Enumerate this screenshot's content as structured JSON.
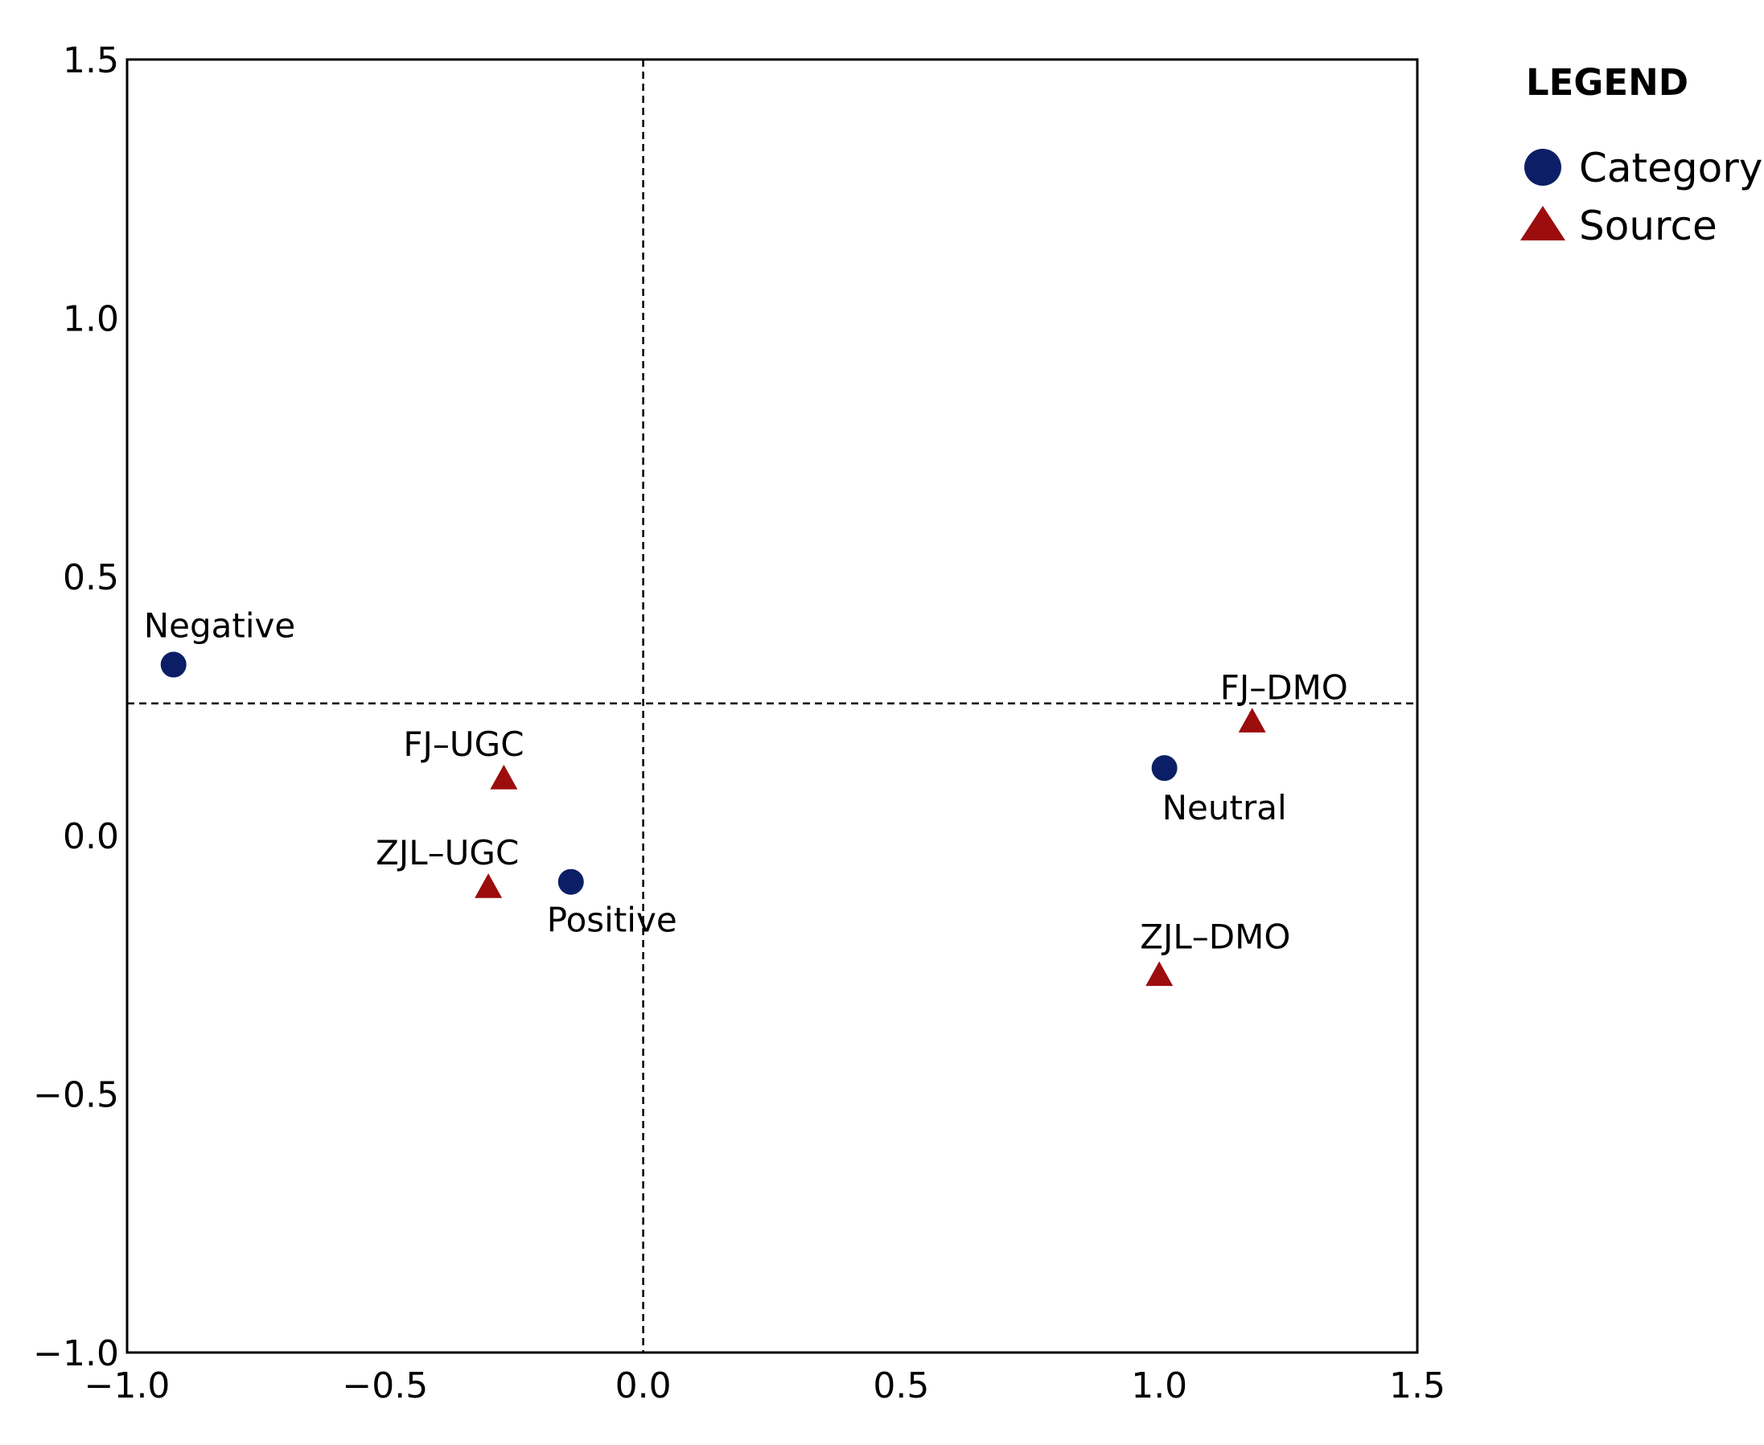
{
  "chart_data": {
    "type": "scatter",
    "title": "",
    "xlabel": "",
    "ylabel": "",
    "xlim": [
      -1.0,
      1.5
    ],
    "ylim": [
      -1.0,
      1.5
    ],
    "x_ticks": [
      -1.0,
      -0.5,
      0.0,
      0.5,
      1.0,
      1.5
    ],
    "y_ticks": [
      -1.0,
      -0.5,
      0.0,
      0.5,
      1.0,
      1.5
    ],
    "x_tick_labels": [
      "−1.0",
      "−0.5",
      "0.0",
      "0.5",
      "1.0",
      "1.5"
    ],
    "y_tick_labels": [
      "−1.0",
      "−0.5",
      "0.0",
      "0.5",
      "1.0",
      "1.5"
    ],
    "grid": false,
    "reference_lines": {
      "vertical_x": 0.0,
      "horizontal_y": 0.255
    },
    "legend": {
      "title": "LEGEND",
      "placement": "right",
      "entries": [
        "Category",
        "Source"
      ]
    },
    "series": [
      {
        "name": "Category",
        "marker": "circle",
        "color": "#0c1f66",
        "points": [
          {
            "label": "Negative",
            "x": -0.91,
            "y": 0.33
          },
          {
            "label": "Positive",
            "x": -0.14,
            "y": -0.09
          },
          {
            "label": "Neutral",
            "x": 1.01,
            "y": 0.13
          }
        ]
      },
      {
        "name": "Source",
        "marker": "triangle",
        "color": "#9c0d0d",
        "points": [
          {
            "label": "FJ–UGC",
            "x": -0.27,
            "y": 0.11
          },
          {
            "label": "ZJL–UGC",
            "x": -0.3,
            "y": -0.1
          },
          {
            "label": "FJ–DMO",
            "x": 1.18,
            "y": 0.22
          },
          {
            "label": "ZJL–DMO",
            "x": 1.0,
            "y": -0.27
          }
        ]
      }
    ]
  }
}
